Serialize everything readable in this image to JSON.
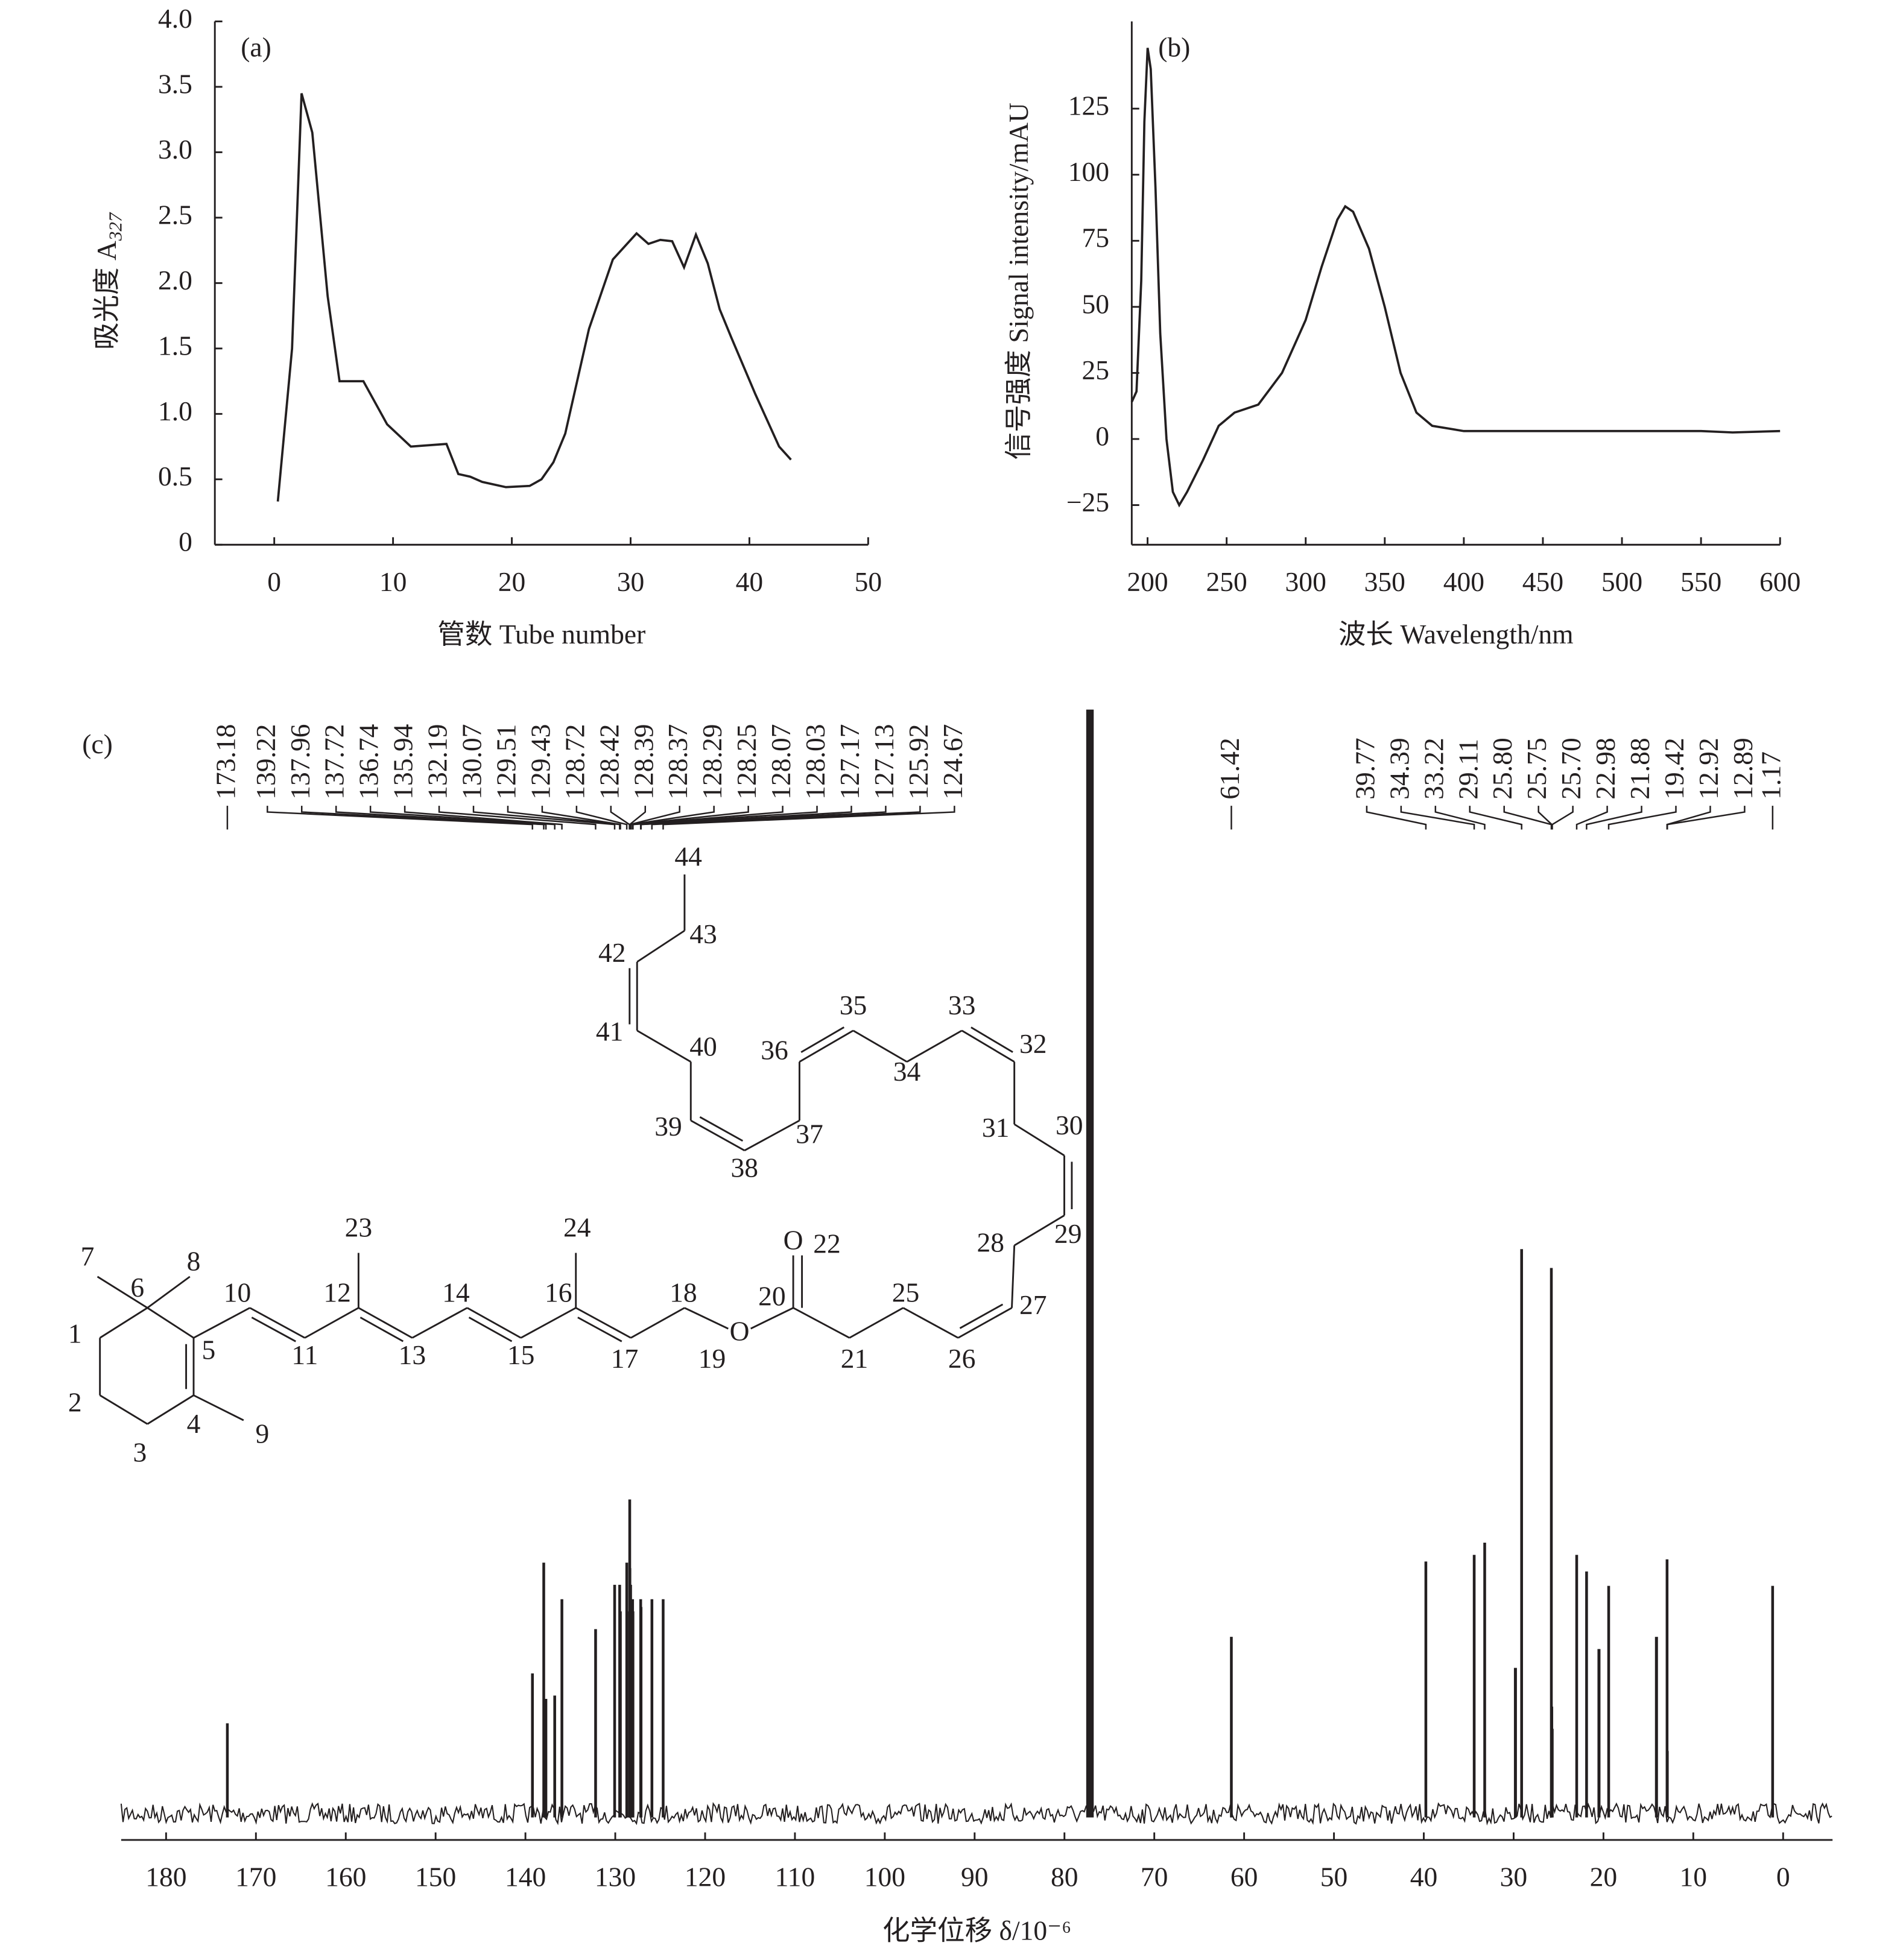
{
  "chart_data": [
    {
      "type": "line",
      "panel_label": "(a)",
      "xlabel": "管数 Tube number",
      "ylabel": "吸光度 A",
      "ylabel_subscript": "327",
      "x": [
        0.3,
        1.5,
        2.3,
        3.2,
        4.5,
        5.5,
        7.5,
        9.5,
        11.5,
        14.5,
        15.5,
        16.5,
        17.5,
        19.5,
        21.5,
        22.5,
        23.5,
        24.5,
        26.5,
        28.5,
        30.5,
        31.5,
        32.5,
        33.5,
        34.5,
        35.5,
        36.5,
        37.5,
        38.5,
        40.5,
        42.5,
        43.5
      ],
      "values": [
        0.33,
        1.5,
        3.45,
        3.15,
        1.9,
        1.25,
        1.25,
        0.92,
        0.75,
        0.77,
        0.54,
        0.52,
        0.48,
        0.44,
        0.45,
        0.5,
        0.63,
        0.85,
        1.65,
        2.18,
        2.38,
        2.3,
        2.33,
        2.32,
        2.12,
        2.37,
        2.15,
        1.8,
        1.58,
        1.15,
        0.75,
        0.65
      ],
      "color": "#231f20",
      "xlim": [
        -5,
        50
      ],
      "xticks": [
        0,
        10,
        20,
        30,
        40,
        50
      ],
      "ylim": [
        0,
        4
      ],
      "yticks": [
        0,
        0.5,
        {
          "value": 1,
          "label": "1.0"
        },
        1.5,
        {
          "value": 2,
          "label": "2.0"
        },
        2.5,
        {
          "value": 3,
          "label": "3.0"
        },
        3.5,
        {
          "value": 4,
          "label": "4.0"
        }
      ]
    },
    {
      "type": "line",
      "panel_label": "(b)",
      "xlabel": "波长 Wavelength/nm",
      "ylabel": "信号强度 Signal intensity/mAU",
      "x": [
        190,
        193,
        196,
        198,
        200,
        202,
        205,
        208,
        212,
        216,
        220,
        225,
        235,
        245,
        255,
        270,
        285,
        300,
        310,
        320,
        325,
        330,
        340,
        350,
        360,
        370,
        380,
        400,
        450,
        500,
        550,
        570,
        600
      ],
      "values": [
        14,
        18,
        60,
        120,
        148,
        140,
        95,
        40,
        0,
        -20,
        -25,
        -20,
        -8,
        5,
        10,
        13,
        25,
        45,
        65,
        83,
        88,
        86,
        72,
        50,
        25,
        10,
        5,
        3,
        3,
        3,
        3,
        2.5,
        3
      ],
      "color": "#231f20",
      "xlim": [
        190,
        600
      ],
      "xticks": [
        200,
        250,
        300,
        350,
        400,
        450,
        500,
        550,
        600
      ],
      "ylim": [
        -40,
        158
      ],
      "yticks": [
        {
          "value": -25,
          "label": "−25"
        },
        0,
        25,
        50,
        75,
        100,
        125
      ]
    },
    {
      "type": "spectrum",
      "panel_label": "(c)",
      "xlabel": "化学位移 δ/10⁻⁶",
      "x": [
        173.18,
        139.22,
        137.96,
        137.72,
        136.74,
        135.94,
        132.19,
        130.07,
        129.51,
        129.43,
        128.72,
        128.42,
        128.39,
        128.37,
        128.29,
        128.25,
        128.07,
        128.03,
        127.17,
        127.13,
        125.92,
        124.67,
        61.42,
        39.77,
        34.39,
        33.22,
        29.11,
        25.8,
        25.75,
        25.7,
        22.98,
        21.88,
        19.42,
        12.92,
        12.89,
        1.17
      ],
      "value_labels": [
        "173.18",
        "139.22",
        "137.96",
        "137.72",
        "136.74",
        "135.94",
        "132.19",
        "130.07",
        "129.51",
        "129.43",
        "128.72",
        "128.42",
        "128.39",
        "128.37",
        "128.29",
        "128.25",
        "128.07",
        "128.03",
        "127.17",
        "127.13",
        "125.92",
        "124.67",
        "61.42",
        "39.77",
        "34.39",
        "33.22",
        "29.11",
        "25.80",
        "25.75",
        "25.70",
        "22.98",
        "21.88",
        "19.42",
        "12.92",
        "12.89",
        "1.17"
      ],
      "values": [
        8.5,
        13,
        23,
        10.7,
        11,
        19.7,
        17,
        21,
        21,
        18.6,
        23,
        18.6,
        28.7,
        22.5,
        21,
        19,
        19.7,
        18.6,
        19.7,
        19,
        19.7,
        19.7,
        16.3,
        23.1,
        23.7,
        24.8,
        51.3,
        49.6,
        10,
        8,
        23.7,
        22.2,
        20.9,
        23.3,
        6,
        20.9
      ],
      "unlabeled_peaks": {
        "x": [
          77.16,
          29.8,
          20.5,
          14.1
        ],
        "values": [
          100,
          13.5,
          15.2,
          16.3
        ]
      },
      "color": "#231f20",
      "xlim": [
        185,
        -5.5
      ],
      "xticks": [
        180,
        170,
        160,
        150,
        140,
        130,
        120,
        110,
        100,
        90,
        80,
        70,
        60,
        50,
        40,
        30,
        20,
        10,
        0
      ],
      "ylim": [
        0,
        100
      ]
    }
  ],
  "structure": {
    "atom_labels": [
      "1",
      "2",
      "3",
      "4",
      "5",
      "6",
      "7",
      "8",
      "9",
      "10",
      "11",
      "12",
      "13",
      "14",
      "15",
      "16",
      "17",
      "18",
      "19",
      "20",
      "21",
      "22",
      "23",
      "24",
      "25",
      "26",
      "27",
      "28",
      "29",
      "30",
      "31",
      "32",
      "33",
      "34",
      "35",
      "36",
      "37",
      "38",
      "39",
      "40",
      "41",
      "42",
      "43",
      "44"
    ],
    "oxygen_labels": [
      "O",
      "O"
    ]
  }
}
